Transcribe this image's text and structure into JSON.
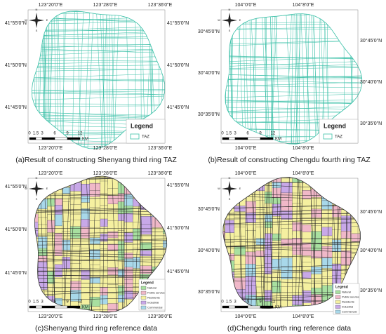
{
  "panels": [
    {
      "caption": "(a)Result of constructing Shenyang third ring TAZ",
      "top_labels": [
        "123°20'0\"E",
        "123°28'0\"E",
        "123°36'0\"E"
      ],
      "bottom_labels": [
        "123°20'0\"E",
        "123°28'0\"E",
        "123°36'0\"E"
      ],
      "left_labels": [
        "41°55'0\"N",
        "41°50'0\"N",
        "41°45'0\"N"
      ],
      "right_labels": [
        "41°55'0\"N",
        "41°50'0\"N",
        "41°45'0\"N"
      ],
      "compass": [
        "N",
        "S",
        "E",
        "W"
      ],
      "scale_labels": [
        "0",
        "1.5",
        "3",
        "6",
        "9",
        "12"
      ],
      "scale_unit": "KM",
      "legend": {
        "title": "Legend",
        "entries": [
          "TAZ"
        ],
        "colors": [
          "#3cc0a8"
        ]
      }
    },
    {
      "caption": "(b)Result of constructing Chengdu fourth ring TAZ",
      "top_labels": [
        "104°0'0\"E",
        "104°8'0\"E"
      ],
      "bottom_labels": [
        "104°0'0\"E",
        "104°8'0\"E"
      ],
      "left_labels": [
        "30°45'0\"N",
        "30°40'0\"N",
        "30°35'0\"N"
      ],
      "right_labels": [
        "30°45'0\"N",
        "30°40'0\"N",
        "30°35'0\"N"
      ],
      "compass": [
        "N",
        "S",
        "E",
        "W"
      ],
      "scale_labels": [
        "0",
        "1.5",
        "3",
        "6",
        "9",
        "12"
      ],
      "scale_unit": "KM",
      "legend": {
        "title": "Legend",
        "entries": [
          "TAZ"
        ],
        "colors": [
          "#3cc0a8"
        ]
      }
    },
    {
      "caption": "(c)Shenyang third ring reference data",
      "top_labels": [
        "123°20'0\"E",
        "123°28'0\"E",
        "123°36'0\"E"
      ],
      "bottom_labels": [
        "123°20'0\"E",
        "123°28'0\"E",
        "123°36'0\"E"
      ],
      "left_labels": [
        "41°55'0\"N",
        "41°50'0\"N",
        "41°45'0\"N"
      ],
      "right_labels": [
        "41°55'0\"N",
        "41°50'0\"N",
        "41°45'0\"N"
      ],
      "compass": [
        "N",
        "S",
        "E",
        "W"
      ],
      "scale_labels": [
        "0",
        "1.5",
        "3",
        "6",
        "9",
        "12"
      ],
      "scale_unit": "KM",
      "legend": {
        "title": "Legend",
        "entries": [
          "Natural",
          "Public service",
          "Residents",
          "Industrial",
          "Commercial"
        ],
        "colors": [
          "#a8e0a0",
          "#f0b8c8",
          "#f5f0a0",
          "#c8a8e8",
          "#a8d8ea"
        ]
      }
    },
    {
      "caption": "(d)Chengdu fourth ring reference data",
      "top_labels": [
        "104°0'0\"E",
        "104°8'0\"E"
      ],
      "bottom_labels": [
        "104°0'0\"E",
        "104°8'0\"E"
      ],
      "left_labels": [
        "30°45'0\"N",
        "30°40'0\"N",
        "30°35'0\"N"
      ],
      "right_labels": [
        "30°45'0\"N",
        "30°40'0\"N",
        "30°35'0\"N"
      ],
      "compass": [
        "N",
        "S",
        "E",
        "W"
      ],
      "scale_labels": [
        "0",
        "1.5",
        "3",
        "6",
        "9",
        "12"
      ],
      "scale_unit": "KM",
      "legend": {
        "title": "Legend",
        "entries": [
          "Natural",
          "Public service",
          "Residents",
          "Industrial",
          "Commercial"
        ],
        "colors": [
          "#a8e0a0",
          "#f0b8c8",
          "#f5f0a0",
          "#c8a8e8",
          "#a8d8ea"
        ]
      }
    }
  ]
}
